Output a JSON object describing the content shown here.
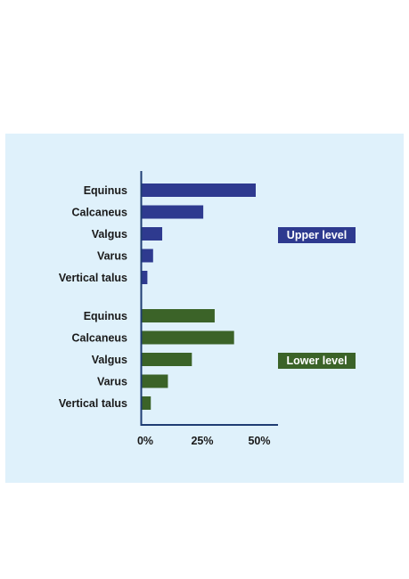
{
  "chart_data": {
    "type": "bar",
    "orientation": "horizontal",
    "x_ticks": [
      "0%",
      "25%",
      "50%"
    ],
    "xlim": [
      0,
      60
    ],
    "grid": false,
    "colors": {
      "upper": "#2e3a8f",
      "lower": "#3b6328"
    },
    "series": [
      {
        "name": "Upper level",
        "categories": [
          "Equinus",
          "Calcaneus",
          "Valgus",
          "Varus",
          "Vertical talus"
        ],
        "values": [
          50,
          27,
          9,
          5,
          2.5
        ]
      },
      {
        "name": "Lower level",
        "categories": [
          "Equinus",
          "Calcaneus",
          "Valgus",
          "Varus",
          "Vertical talus"
        ],
        "values": [
          32,
          40.5,
          22,
          11.5,
          4
        ]
      }
    ]
  }
}
